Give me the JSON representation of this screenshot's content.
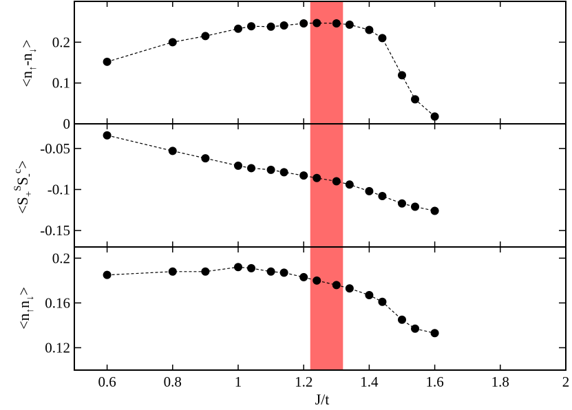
{
  "chart_data": [
    {
      "type": "line",
      "xlabel": "",
      "ylabel": "<n↑-n↓>",
      "xlim": [
        0.5,
        2.0
      ],
      "ylim": [
        0.0,
        0.3
      ],
      "yticks": [
        "0",
        "0.1",
        "0.2"
      ],
      "ytick_values": [
        0,
        0.1,
        0.2
      ],
      "grid": false,
      "highlight_band": {
        "x0": 1.22,
        "x1": 1.32,
        "color": "#ff6b6b"
      },
      "series": [
        {
          "x": [
            0.6,
            0.8,
            0.9,
            1.0,
            1.04,
            1.1,
            1.14,
            1.2,
            1.24,
            1.3,
            1.34,
            1.4,
            1.44,
            1.5,
            1.54,
            1.6
          ],
          "y": [
            0.152,
            0.2,
            0.215,
            0.233,
            0.239,
            0.238,
            0.241,
            0.246,
            0.247,
            0.246,
            0.243,
            0.23,
            0.21,
            0.119,
            0.06,
            0.018
          ]
        }
      ]
    },
    {
      "type": "line",
      "xlabel": "",
      "ylabel": "<S+S S-c>",
      "xlim": [
        0.5,
        2.0
      ],
      "ylim": [
        -0.17,
        -0.02
      ],
      "yticks": [
        "-0.05",
        "-0.1",
        "-0.15"
      ],
      "ytick_values": [
        -0.05,
        -0.1,
        -0.15
      ],
      "grid": false,
      "highlight_band": {
        "x0": 1.22,
        "x1": 1.32,
        "color": "#ff6b6b"
      },
      "series": [
        {
          "x": [
            0.6,
            0.8,
            0.9,
            1.0,
            1.04,
            1.1,
            1.14,
            1.2,
            1.24,
            1.3,
            1.34,
            1.4,
            1.44,
            1.5,
            1.54,
            1.6
          ],
          "y": [
            -0.034,
            -0.053,
            -0.062,
            -0.071,
            -0.074,
            -0.076,
            -0.079,
            -0.083,
            -0.086,
            -0.09,
            -0.094,
            -0.102,
            -0.108,
            -0.117,
            -0.121,
            -0.126
          ]
        }
      ]
    },
    {
      "type": "line",
      "xlabel": "J/t",
      "ylabel": "<n↑n↓>",
      "xlim": [
        0.5,
        2.0
      ],
      "ylim": [
        0.1,
        0.21
      ],
      "xticks": [
        "0.6",
        "0.8",
        "1",
        "1.2",
        "1.4",
        "1.6",
        "1.8",
        "2"
      ],
      "xtick_values": [
        0.6,
        0.8,
        1.0,
        1.2,
        1.4,
        1.6,
        1.8,
        2.0
      ],
      "yticks": [
        "0.2",
        "0.16",
        "0.12"
      ],
      "ytick_values": [
        0.2,
        0.16,
        0.12
      ],
      "grid": false,
      "highlight_band": {
        "x0": 1.22,
        "x1": 1.32,
        "color": "#ff6b6b"
      },
      "series": [
        {
          "x": [
            0.6,
            0.8,
            0.9,
            1.0,
            1.04,
            1.1,
            1.14,
            1.2,
            1.24,
            1.3,
            1.34,
            1.4,
            1.44,
            1.5,
            1.54,
            1.6
          ],
          "y": [
            0.185,
            0.188,
            0.188,
            0.192,
            0.191,
            0.188,
            0.187,
            0.183,
            0.18,
            0.176,
            0.173,
            0.167,
            0.161,
            0.145,
            0.137,
            0.133
          ]
        }
      ]
    }
  ],
  "labels": {
    "panel1_ylabel": {
      "lt": "<n",
      "s1": "↑",
      "mid": "-n",
      "s2": "↓",
      "gt": ">"
    },
    "panel2_ylabel": {
      "lt": "<S",
      "s1": "+",
      "sup1": "S",
      "mid": "S",
      "s2": "-",
      "sup2": "c",
      "gt": ">"
    },
    "panel3_ylabel": {
      "lt": "<n",
      "s1": "↑",
      "mid": "n",
      "s2": "↓",
      "gt": ">"
    },
    "xlabel": "J/t"
  }
}
